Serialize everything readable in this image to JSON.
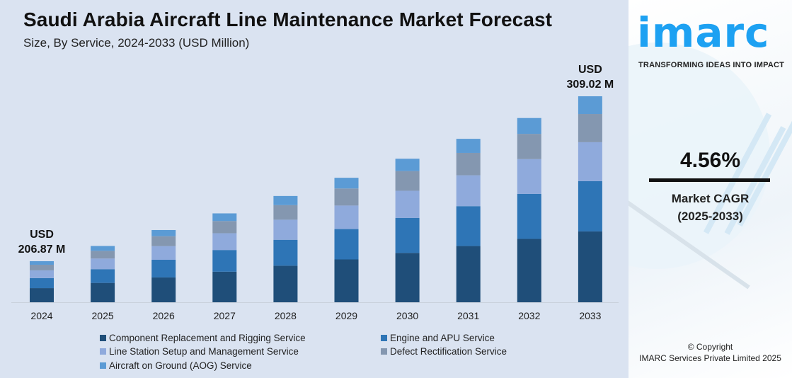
{
  "header": {
    "title": "Saudi Arabia Aircraft Line Maintenance Market Forecast",
    "subtitle": "Size, By Service, 2024-2033 (USD Million)"
  },
  "brand": {
    "logo_text": "imarc",
    "tagline": "TRANSFORMING IDEAS INTO IMPACT",
    "logo_color": "#1da1f2"
  },
  "cagr": {
    "value": "4.56%",
    "label_line1": "Market CAGR",
    "label_line2": "(2025-2033)"
  },
  "copyright": {
    "line1": "© Copyright",
    "line2": "IMARC Services Private Limited 2025"
  },
  "chart_data": {
    "type": "bar",
    "stacked": true,
    "title": "Saudi Arabia Aircraft Line Maintenance Market Forecast",
    "subtitle": "Size, By Service, 2024-2033 (USD Million)",
    "xlabel": "",
    "ylabel": "USD Million",
    "grid": false,
    "legend_position": "bottom",
    "ylim": [
      181.44,
      309.02
    ],
    "categories": [
      "2024",
      "2025",
      "2026",
      "2027",
      "2028",
      "2029",
      "2030",
      "2031",
      "2032",
      "2033"
    ],
    "totals": [
      206.87,
      216.3,
      226.17,
      236.48,
      247.26,
      258.54,
      270.33,
      282.66,
      295.55,
      309.02
    ],
    "annotations": [
      {
        "category": "2024",
        "line1": "USD",
        "line2": "206.87 M"
      },
      {
        "category": "2033",
        "line1": "USD",
        "line2": "309.02 M"
      }
    ],
    "series": [
      {
        "name": "Component Replacement and Rigging Service",
        "color": "#1f4e79",
        "values": [
          71.16,
          74.41,
          77.8,
          81.35,
          85.06,
          88.94,
          92.99,
          97.24,
          101.67,
          106.3
        ]
      },
      {
        "name": "Engine and APU Service",
        "color": "#2e75b6",
        "values": [
          50.48,
          52.78,
          55.19,
          57.7,
          60.33,
          63.08,
          65.96,
          68.97,
          72.11,
          75.4
        ]
      },
      {
        "name": "Line Station Setup and Management Service",
        "color": "#8faadc",
        "values": [
          39.1,
          40.88,
          42.75,
          44.69,
          46.73,
          48.86,
          51.09,
          53.42,
          55.86,
          58.41
        ]
      },
      {
        "name": "Defect Rectification Service",
        "color": "#8497b0",
        "values": [
          28.34,
          29.63,
          30.98,
          32.4,
          33.87,
          35.42,
          37.04,
          38.72,
          40.49,
          42.34
        ]
      },
      {
        "name": "Aircraft on Ground (AOG) Service",
        "color": "#5b9bd5",
        "values": [
          17.79,
          18.6,
          19.45,
          20.34,
          21.27,
          22.24,
          23.25,
          24.31,
          25.42,
          26.57
        ]
      }
    ]
  }
}
